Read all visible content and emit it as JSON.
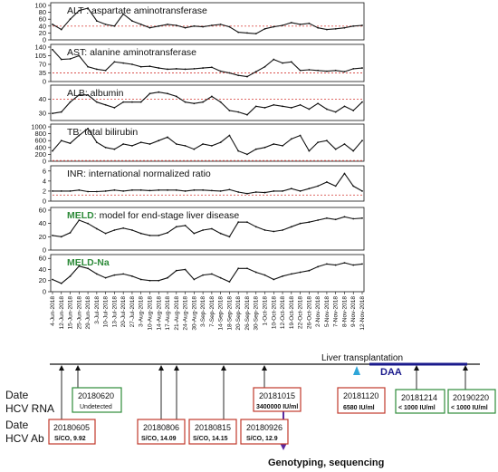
{
  "chart_data": {
    "type": "line",
    "x_dates": [
      "4-Jun-2018",
      "12-Jun-2018",
      "15-Jun-2018",
      "25-Jun-2018",
      "29-Jun-2018",
      "3-Jul-2018",
      "10-Jul-2018",
      "13-Jul-2018",
      "20-Jul-2018",
      "27-Jul-2018",
      "3-Aug-2018",
      "10-Aug-2018",
      "14-Aug-2018",
      "17-Aug-2018",
      "21-Aug-2018",
      "24-Aug-2018",
      "30-Aug-2018",
      "3-Sep-2018",
      "7-Sep-2018",
      "14-Sep-2018",
      "18-Sep-2018",
      "20-Sep-2018",
      "26-Sep-2018",
      "30-Sep-2018",
      "1-Oct-2018",
      "10-Oct-2018",
      "12-Oct-2018",
      "19-Oct-2018",
      "22-Oct-2018",
      "26-Oct-2018",
      "2-Nov-2018",
      "5-Nov-2018",
      "7-Nov-2018",
      "8-Nov-2018",
      "9-Nov-2018",
      "12-Nov-2018"
    ],
    "panels": [
      {
        "title": "ALT : aspartate aminotransferase",
        "title_green_prefix": "",
        "yticks": [
          0,
          20,
          40,
          60,
          80,
          100
        ],
        "ylim": [
          0,
          100
        ],
        "ref_line": 40,
        "values": [
          45,
          30,
          60,
          85,
          92,
          55,
          45,
          40,
          75,
          55,
          45,
          35,
          40,
          45,
          42,
          35,
          40,
          38,
          42,
          45,
          38,
          22,
          20,
          18,
          32,
          38,
          42,
          50,
          45,
          48,
          35,
          30,
          32,
          35,
          40,
          42
        ]
      },
      {
        "title": "AST: alanine aminotransferase",
        "title_green_prefix": "",
        "yticks": [
          0,
          35,
          70,
          105,
          140
        ],
        "ylim": [
          0,
          140
        ],
        "ref_line": 35,
        "values": [
          130,
          90,
          92,
          105,
          60,
          50,
          45,
          80,
          75,
          70,
          60,
          62,
          55,
          50,
          52,
          50,
          52,
          55,
          58,
          42,
          35,
          25,
          20,
          40,
          60,
          90,
          75,
          80,
          45,
          48,
          45,
          42,
          45,
          40,
          52,
          55
        ]
      },
      {
        "title": "ALB: albumin",
        "title_green_prefix": "",
        "yticks": [
          30,
          40
        ],
        "ylim": [
          25,
          48
        ],
        "ref_line": 40,
        "values": [
          30,
          31,
          38,
          43,
          43,
          38,
          36,
          34,
          38,
          38,
          38,
          44,
          45,
          44,
          42,
          38,
          37,
          38,
          42,
          38,
          32,
          31,
          29,
          35,
          34,
          36,
          35,
          34,
          36,
          33,
          37,
          33,
          31,
          35,
          32,
          38
        ]
      },
      {
        "title": "TB:  total bilirubin",
        "title_green_prefix": "",
        "yticks": [
          0,
          200,
          400,
          600,
          800,
          1000
        ],
        "ylim": [
          0,
          1000
        ],
        "ref_line": 20,
        "values": [
          300,
          600,
          520,
          750,
          950,
          550,
          400,
          350,
          500,
          450,
          550,
          500,
          600,
          700,
          500,
          450,
          350,
          500,
          450,
          550,
          750,
          300,
          200,
          350,
          400,
          500,
          450,
          650,
          750,
          300,
          550,
          600,
          350,
          500,
          300,
          600
        ]
      },
      {
        "title": "INR: international normalized ratio",
        "title_green_prefix": "",
        "yticks": [
          0,
          2,
          4,
          6
        ],
        "ylim": [
          0,
          6.5
        ],
        "ref_line": 1.2,
        "values": [
          2,
          2,
          2,
          2.2,
          1.9,
          1.9,
          2,
          2.2,
          2,
          2.2,
          2.2,
          2.1,
          2.2,
          2.2,
          2.2,
          2,
          2.2,
          2.2,
          2.1,
          2,
          2.3,
          1.8,
          1.5,
          1.8,
          1.7,
          2,
          2,
          2.5,
          2,
          2.5,
          3,
          3.8,
          3,
          5.5,
          3,
          2
        ]
      },
      {
        "title": ": model for end-stage liver disease",
        "title_green_prefix": "MELD",
        "yticks": [
          0,
          20,
          40,
          60
        ],
        "ylim": [
          0,
          60
        ],
        "ref_line": null,
        "values": [
          22,
          20,
          26,
          45,
          40,
          32,
          25,
          30,
          33,
          30,
          25,
          22,
          22,
          26,
          35,
          37,
          25,
          30,
          32,
          25,
          20,
          42,
          42,
          35,
          30,
          28,
          30,
          35,
          40,
          42,
          45,
          48,
          46,
          50,
          47,
          48
        ]
      },
      {
        "title": "",
        "title_green_prefix": "MELD-Na",
        "yticks": [
          0,
          20,
          40,
          60
        ],
        "ylim": [
          0,
          62
        ],
        "ref_line": null,
        "values": [
          22,
          15,
          28,
          46,
          42,
          32,
          25,
          30,
          32,
          28,
          22,
          20,
          20,
          25,
          38,
          40,
          22,
          30,
          32,
          25,
          18,
          42,
          42,
          35,
          30,
          22,
          28,
          32,
          35,
          38,
          45,
          50,
          48,
          52,
          48,
          50
        ]
      }
    ]
  },
  "timeline": {
    "row_labels": [
      {
        "line1": "Date",
        "line2": "HCV RNA"
      },
      {
        "line1": "Date",
        "line2": "HCV Ab"
      }
    ],
    "liver_transplant_label": "Liver transplantation",
    "daa_label": "DAA",
    "genotyping_label": "Genotyping, sequencing",
    "rna_boxes": [
      {
        "date": "20180620",
        "value": "Undetected",
        "color": "#2e8b3a"
      },
      {
        "date": "20181015",
        "value": "3400000 IU/ml",
        "color": "#c0392b"
      },
      {
        "date": "20181120",
        "value": "6580 IU/ml",
        "color": "#c0392b"
      },
      {
        "date": "20181214",
        "value": "< 1000 IU/ml",
        "color": "#2e8b3a"
      },
      {
        "date": "20190220",
        "value": "< 1000 IU/ml",
        "color": "#2e8b3a"
      }
    ],
    "ab_boxes": [
      {
        "date": "20180605",
        "value": "S/CO, 9.92",
        "color": "#c0392b"
      },
      {
        "date": "20180806",
        "value": "S/CO, 14.09",
        "color": "#c0392b"
      },
      {
        "date": "20180815",
        "value": "S/CO, 14.15",
        "color": "#c0392b"
      },
      {
        "date": "20180926",
        "value": "S/CO, 12.9",
        "color": "#c0392b"
      }
    ]
  },
  "colors": {
    "line": "#111111",
    "ref_line": "#d9534f",
    "red_box": "#c0392b",
    "green_box": "#2e8b3a",
    "meld_green": "#2e8b3a",
    "daa_blue": "#1a1a8c",
    "transplant_marker": "#2fa6d8",
    "genotyping_arrow": "#5b2a9e"
  }
}
